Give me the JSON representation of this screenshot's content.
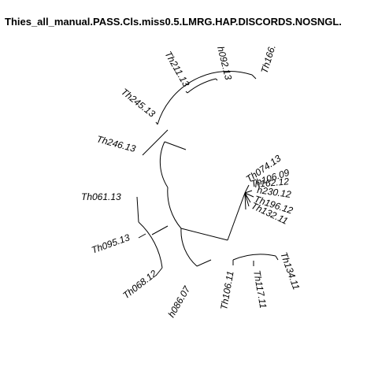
{
  "title": "Thies_all_manual.PASS.Cls.miss0.5.LMRG.HAP.DISCORDS.NOSNGL.",
  "tips": [
    {
      "id": "tip-th166",
      "label": "Th166."
    },
    {
      "id": "tip-th092",
      "label": "h092.13"
    },
    {
      "id": "tip-th211",
      "label": "Th211.13"
    },
    {
      "id": "tip-th245",
      "label": "Th245.13"
    },
    {
      "id": "tip-th246",
      "label": "Th246.13"
    },
    {
      "id": "tip-th061",
      "label": "Th061.13"
    },
    {
      "id": "tip-th095",
      "label": "Th095.13"
    },
    {
      "id": "tip-th068",
      "label": "Th068.12"
    },
    {
      "id": "tip-th086",
      "label": "h086.07"
    },
    {
      "id": "tip-th106-11",
      "label": "Th106.11"
    },
    {
      "id": "tip-th117",
      "label": "Th117.11"
    },
    {
      "id": "tip-th134",
      "label": "Th134.11"
    },
    {
      "id": "tip-th132",
      "label": "Th132.11"
    },
    {
      "id": "tip-th196",
      "label": "Th196.12"
    },
    {
      "id": "tip-th230",
      "label": "h230.12"
    },
    {
      "id": "tip-th162",
      "label": "h162.12"
    },
    {
      "id": "tip-th106-09",
      "label": "Th106.09"
    },
    {
      "id": "tip-th074",
      "label": "Th074.13"
    }
  ]
}
